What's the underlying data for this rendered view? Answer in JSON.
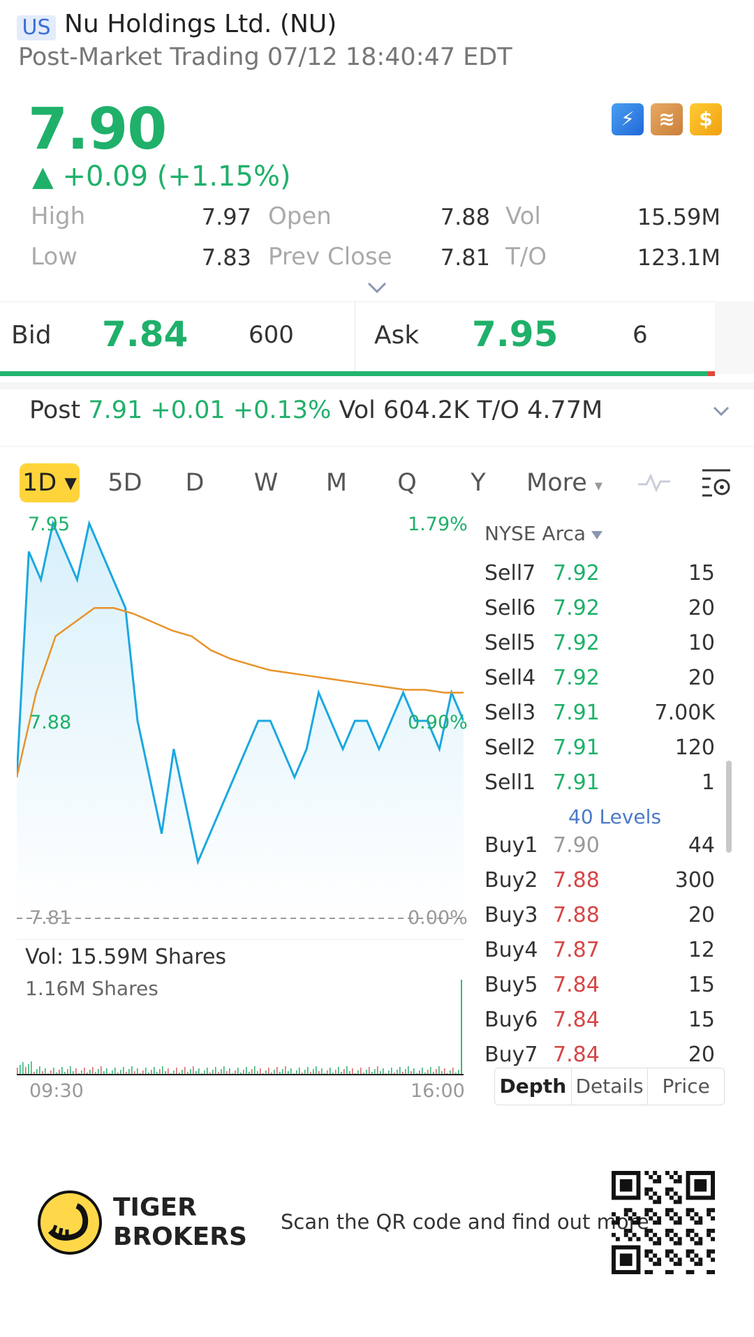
{
  "header": {
    "market": "US",
    "name": "Nu Holdings Ltd. (NU)",
    "session": "Post-Market Trading 07/12 18:40:47 EDT"
  },
  "quote": {
    "price": "7.90",
    "change": "▲ +0.09 (+1.15%)",
    "badges": [
      "lightning-icon",
      "stack-icon",
      "dollar-icon"
    ],
    "stats": {
      "high_label": "High",
      "high": "7.97",
      "low_label": "Low",
      "low": "7.83",
      "open_label": "Open",
      "open": "7.88",
      "prev_label": "Prev Close",
      "prev": "7.81",
      "vol_label": "Vol",
      "vol": "15.59M",
      "to_label": "T/O",
      "to": "123.1M"
    }
  },
  "bidask": {
    "bid_label": "Bid",
    "bid_price": "7.84",
    "bid_size": "600",
    "ask_label": "Ask",
    "ask_price": "7.95",
    "ask_size": "6",
    "bid_ratio": 0.99
  },
  "post": {
    "label": "Post",
    "price_change": "7.91 +0.01 +0.13%",
    "vol": "Vol  604.2K",
    "to": "T/O 4.77M"
  },
  "timeframes": [
    "1D",
    "5D",
    "D",
    "W",
    "M",
    "Q",
    "Y"
  ],
  "timeframe_more": "More",
  "chart": {
    "high_label": "7.95",
    "mid_label": "7.88",
    "low_label": "7.81",
    "pct_high": "1.79%",
    "pct_mid": "0.90%",
    "pct_low": "0.00%",
    "vol_title": "Vol:   15.59M Shares",
    "vol_sub": "1.16M Shares",
    "time_start": "09:30",
    "time_end": "16:00",
    "line_color": "#1aa8e0",
    "avg_color": "#e8932a"
  },
  "chart_data": {
    "type": "line",
    "title": "",
    "ylim": [
      7.81,
      7.95
    ],
    "xlabel": "",
    "ylabel": "",
    "series": [
      {
        "values": [
          7.86,
          7.94,
          7.93,
          7.95,
          7.94,
          7.93,
          7.95,
          7.94,
          7.93,
          7.92,
          7.88,
          7.86,
          7.84,
          7.87,
          7.85,
          7.83,
          7.84,
          7.85,
          7.86,
          7.87,
          7.88,
          7.88,
          7.87,
          7.86,
          7.87,
          7.89,
          7.88,
          7.87,
          7.88,
          7.88,
          7.87,
          7.88,
          7.89,
          7.88,
          7.88,
          7.87,
          7.89,
          7.88
        ]
      },
      {
        "values": [
          7.86,
          7.89,
          7.91,
          7.915,
          7.92,
          7.92,
          7.918,
          7.915,
          7.912,
          7.91,
          7.905,
          7.902,
          7.9,
          7.898,
          7.897,
          7.896,
          7.895,
          7.894,
          7.893,
          7.892,
          7.891,
          7.891,
          7.89,
          7.89
        ]
      }
    ]
  },
  "orderbook": {
    "exchange": "NYSE Arca",
    "sells": [
      {
        "side": "Sell7",
        "price": "7.92",
        "size": "15"
      },
      {
        "side": "Sell6",
        "price": "7.92",
        "size": "20"
      },
      {
        "side": "Sell5",
        "price": "7.92",
        "size": "10"
      },
      {
        "side": "Sell4",
        "price": "7.92",
        "size": "20"
      },
      {
        "side": "Sell3",
        "price": "7.91",
        "size": "7.00K"
      },
      {
        "side": "Sell2",
        "price": "7.91",
        "size": "120"
      },
      {
        "side": "Sell1",
        "price": "7.91",
        "size": "1"
      }
    ],
    "levels": "40 Levels",
    "buys": [
      {
        "side": "Buy1",
        "price": "7.90",
        "size": "44"
      },
      {
        "side": "Buy2",
        "price": "7.88",
        "size": "300"
      },
      {
        "side": "Buy3",
        "price": "7.88",
        "size": "20"
      },
      {
        "side": "Buy4",
        "price": "7.87",
        "size": "12"
      },
      {
        "side": "Buy5",
        "price": "7.84",
        "size": "15"
      },
      {
        "side": "Buy6",
        "price": "7.84",
        "size": "15"
      },
      {
        "side": "Buy7",
        "price": "7.84",
        "size": "20"
      }
    ],
    "tabs": [
      "Depth",
      "Details",
      "Price"
    ]
  },
  "footer": {
    "brand_line1": "TIGER",
    "brand_line2": "BROKERS",
    "qr_text": "Scan the QR code and find out more"
  }
}
